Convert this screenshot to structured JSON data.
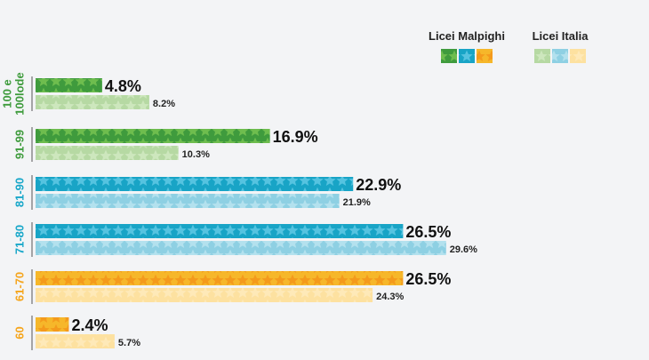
{
  "chart_data": {
    "type": "bar",
    "orientation": "horizontal",
    "categories": [
      "100 e 100lode",
      "91-99",
      "81-90",
      "71-80",
      "61-70",
      "60"
    ],
    "category_lines": [
      [
        "100 e",
        "100lode"
      ],
      [
        "91-99"
      ],
      [
        "81-90"
      ],
      [
        "71-80"
      ],
      [
        "61-70"
      ],
      [
        "60"
      ]
    ],
    "series": [
      {
        "name": "Licei Malpighi",
        "values": [
          4.8,
          16.9,
          22.9,
          26.5,
          26.5,
          2.4
        ],
        "labels": [
          "4.8%",
          "16.9%",
          "22.9%",
          "26.5%",
          "26.5%",
          "2.4%"
        ]
      },
      {
        "name": "Licei Italia",
        "values": [
          8.2,
          10.3,
          21.9,
          29.6,
          24.3,
          5.7
        ],
        "labels": [
          "8.2%",
          "10.3%",
          "21.9%",
          "29.6%",
          "24.3%",
          "5.7%"
        ]
      }
    ],
    "category_colors": [
      "#3e9b3c",
      "#3e9b3c",
      "#18a7c9",
      "#18a7c9",
      "#f5a51c",
      "#f5a51c"
    ],
    "palette": {
      "green": {
        "main_bg": "#3f9b3d",
        "main_star": "#6ebd4e",
        "light_bg": "#b6d9a3",
        "light_star": "#cde7bd"
      },
      "blue": {
        "main_bg": "#18a4c6",
        "main_star": "#55c3e0",
        "light_bg": "#8ed0e3",
        "light_star": "#b3e1ee"
      },
      "orange": {
        "main_bg": "#f6b72a",
        "main_star": "#f49a1c",
        "light_bg": "#fde1a0",
        "light_star": "#fee9b8"
      }
    },
    "xlim": [
      0,
      30
    ],
    "grid": false,
    "legend_position": "top-right"
  }
}
